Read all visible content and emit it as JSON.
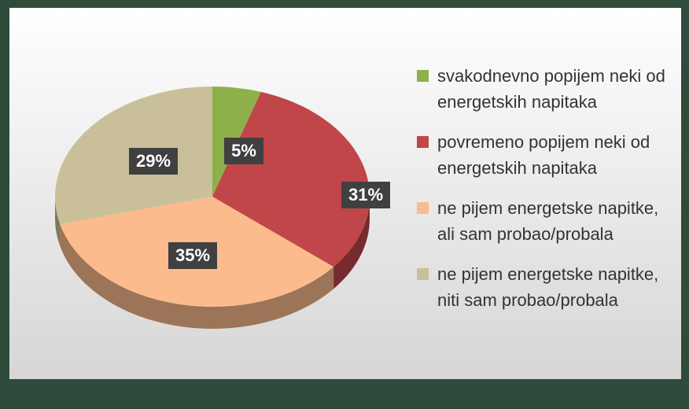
{
  "chart_data": {
    "type": "pie",
    "series": [
      {
        "name": "svakodnevno popijem neki od energetskih napitaka",
        "color": "#8db04a",
        "values": [
          5
        ],
        "value_labels": [
          "5%"
        ]
      },
      {
        "name": "povremeno popijem neki od energetskih napitaka",
        "color": "#c0464a",
        "values": [
          31
        ],
        "value_labels": [
          "31%"
        ]
      },
      {
        "name": "ne pijem energetske napitke, ali sam probao/probala",
        "color": "#fbbb8c",
        "values": [
          35
        ],
        "value_labels": [
          "35%"
        ]
      },
      {
        "name": "ne pijem energetske napitke, niti sam probao/probala",
        "color": "#c9c09a",
        "values": [
          29
        ],
        "value_labels": [
          "29%"
        ]
      }
    ],
    "legend": "right"
  }
}
